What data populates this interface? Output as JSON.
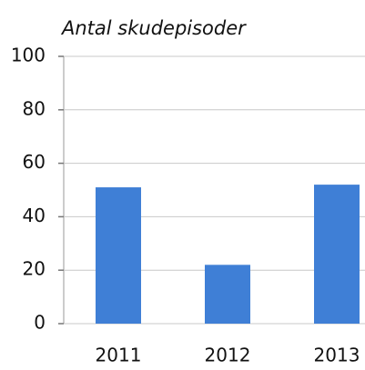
{
  "chart_data": {
    "type": "bar",
    "title": "Antal skudepisoder",
    "categories": [
      "2011",
      "2012",
      "2013"
    ],
    "values": [
      51,
      22,
      52
    ],
    "color": "#3f7fd6",
    "ylim": [
      0,
      100
    ],
    "yticks": [
      0,
      20,
      40,
      60,
      80,
      100
    ],
    "grid": true
  }
}
